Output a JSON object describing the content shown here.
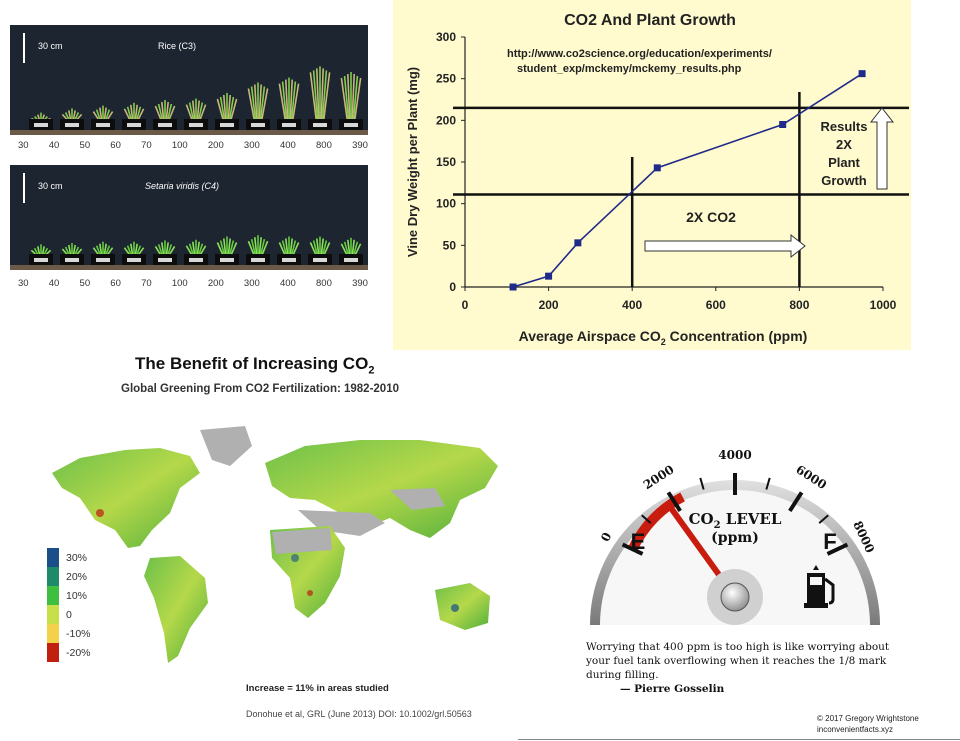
{
  "photos": {
    "scale_label": "30 cm",
    "rice": {
      "species": "Rice (C3)",
      "labels": [
        "30",
        "40",
        "50",
        "60",
        "70",
        "100",
        "200",
        "300",
        "400",
        "800",
        "390"
      ],
      "heights": [
        0.12,
        0.18,
        0.22,
        0.26,
        0.3,
        0.32,
        0.4,
        0.55,
        0.62,
        0.78,
        0.7
      ]
    },
    "setaria": {
      "species": "Setaria viridis (C4)",
      "labels": [
        "30",
        "40",
        "50",
        "60",
        "70",
        "100",
        "200",
        "300",
        "400",
        "800",
        "390"
      ],
      "heights": [
        0.18,
        0.2,
        0.22,
        0.22,
        0.24,
        0.25,
        0.3,
        0.32,
        0.3,
        0.3,
        0.28
      ]
    }
  },
  "chart_data": {
    "type": "line",
    "title": "CO2  And Plant Growth",
    "url_line1": "http://www.co2science.org/education/experiments/",
    "url_line2": "student_exp/mckemy/mckemy_results.php",
    "xlabel": "Average  Airspace  CO",
    "xlabel_sub": "2",
    "xlabel_unit": " Concentration  (ppm)",
    "ylabel": "Vine  Dry  Weight  per  Plant  (mg)",
    "xlim": [
      0,
      1000
    ],
    "ylim": [
      0,
      300
    ],
    "x_ticks": [
      "0",
      "200",
      "400",
      "600",
      "800",
      "1000"
    ],
    "y_ticks": [
      "0",
      "50",
      "100",
      "150",
      "200",
      "250",
      "300"
    ],
    "series": [
      {
        "x": [
          115,
          200,
          270,
          460,
          760,
          950
        ],
        "y": [
          0,
          13,
          53,
          143,
          195,
          256
        ]
      }
    ],
    "reference_lines": {
      "x": [
        400,
        800
      ],
      "y": [
        111,
        215
      ]
    },
    "annotation_2x": "2X CO2",
    "annotation_results": [
      "Results",
      "2X",
      "Plant",
      "Growth"
    ],
    "colors": {
      "line": "#1f2a8a",
      "marker": "#1f2a8a",
      "background": "#fffbcf"
    }
  },
  "map": {
    "title_main": "The Benefit of Increasing CO",
    "title_sub_script": "2",
    "subtitle": "Global Greening From CO2 Fertilization: 1982-2010",
    "legend": [
      {
        "label": "30%",
        "color": "#1a4f8a"
      },
      {
        "label": "20%",
        "color": "#1f8a6a"
      },
      {
        "label": "10%",
        "color": "#3fbf3f"
      },
      {
        "label": "0",
        "color": "#c7e04a"
      },
      {
        "label": "-10%",
        "color": "#f2d24a"
      },
      {
        "label": "-20%",
        "color": "#c02010"
      }
    ],
    "note": "Increase = 11% in areas studied",
    "citation": "Donohue et al, GRL (June 2013) DOI: 10.1002/grl.50563"
  },
  "gauge": {
    "ticks": [
      "0",
      "2000",
      "4000",
      "6000",
      "8000"
    ],
    "title_main": "CO",
    "title_sub": "2",
    "title_rest": " LEVEL",
    "unit": "(ppm)",
    "empty": "E",
    "full": "F",
    "icon": "fuel-pump-icon"
  },
  "quote": {
    "text": "Worrying that 400 ppm is too high is like worrying about your fuel tank overflowing when it reaches the 1/8 mark during filling.",
    "author": "— Pierre Gosselin"
  },
  "copyright": {
    "line1": "© 2017 Gregory Wrightstone",
    "line2": "inconvenientfacts.xyz"
  }
}
